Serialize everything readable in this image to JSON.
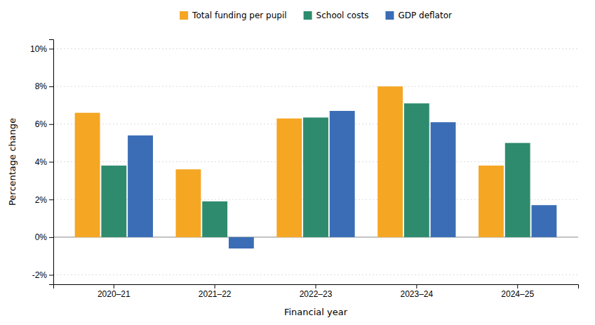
{
  "chart_data": {
    "type": "bar",
    "categories": [
      "2020–21",
      "2021–22",
      "2022–23",
      "2023–24",
      "2024–25"
    ],
    "series": [
      {
        "name": "Total funding per pupil",
        "color": "#F5A623",
        "values": [
          6.6,
          3.6,
          6.3,
          8.0,
          3.8
        ]
      },
      {
        "name": "School costs",
        "color": "#2E8B6E",
        "values": [
          3.8,
          1.9,
          6.35,
          7.1,
          5.0
        ]
      },
      {
        "name": "GDP deflator",
        "color": "#3A6DB5",
        "values": [
          5.4,
          -0.6,
          6.7,
          6.1,
          1.7
        ]
      }
    ],
    "xlabel": "Financial year",
    "ylabel": "Percentage change",
    "ylim": [
      -2.5,
      10.5
    ],
    "yticks": [
      {
        "value": -2,
        "label": "-2%"
      },
      {
        "value": 0,
        "label": "0%"
      },
      {
        "value": 2,
        "label": "2%"
      },
      {
        "value": 4,
        "label": "4%"
      },
      {
        "value": 6,
        "label": "6%"
      },
      {
        "value": 8,
        "label": "8%"
      },
      {
        "value": 10,
        "label": "10%"
      }
    ],
    "grid": true,
    "legend": "top"
  }
}
